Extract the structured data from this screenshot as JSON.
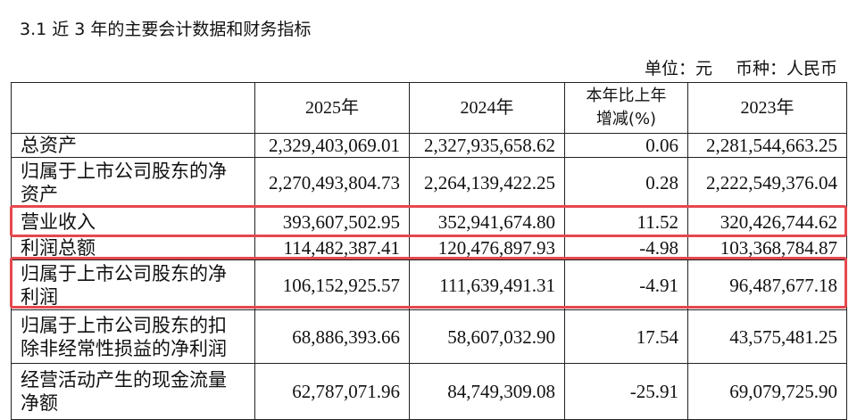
{
  "heading": "3.1 近 3 年的主要会计数据和财务指标",
  "unit": "单位：元",
  "currency": "币种：人民币",
  "table": {
    "header": [
      "",
      "2025年",
      "2024年",
      "本年比上年增减(%)",
      "2023年"
    ],
    "rows": [
      [
        "总资产",
        "2,329,403,069.01",
        "2,327,935,658.62",
        "0.06",
        "2,281,544,663.25"
      ],
      [
        "归属于上市公司股东的净资产",
        "2,270,493,804.73",
        "2,264,139,422.25",
        "0.28",
        "2,222,549,376.04"
      ],
      [
        "营业收入",
        "393,607,502.95",
        "352,941,674.80",
        "11.52",
        "320,426,744.62"
      ],
      [
        "利润总额",
        "114,482,387.41",
        "120,476,897.93",
        "-4.98",
        "103,368,784.87"
      ],
      [
        "归属于上市公司股东的净利润",
        "106,152,925.57",
        "111,639,491.31",
        "-4.91",
        "96,487,677.18"
      ],
      [
        "归属于上市公司股东的扣除非经常性损益的净利润",
        "68,886,393.66",
        "58,607,032.90",
        "17.54",
        "43,575,481.25"
      ],
      [
        "经营活动产生的现金流量净额",
        "62,787,071.96",
        "84,749,309.08",
        "-25.91",
        "69,079,725.90"
      ]
    ]
  }
}
